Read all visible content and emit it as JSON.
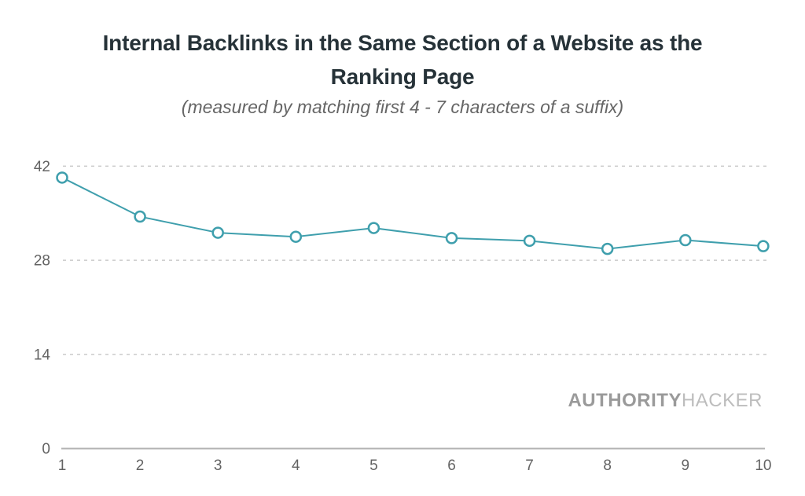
{
  "header": {
    "title_lines": [
      "Internal Backlinks in the Same Section of a Website as the",
      "Ranking Page"
    ],
    "subtitle": "(measured by matching first 4 - 7 characters of a suffix)"
  },
  "watermark": {
    "bold": "AUTHORITY",
    "light": "HACKER"
  },
  "chart_data": {
    "type": "line",
    "title": "Internal Backlinks in the Same Section of a Website as the Ranking Page",
    "subtitle": "(measured by matching first 4 - 7 characters of a suffix)",
    "x": [
      1,
      2,
      3,
      4,
      5,
      6,
      7,
      8,
      9,
      10
    ],
    "values": [
      40.3,
      34.5,
      32.1,
      31.5,
      32.8,
      31.3,
      30.9,
      29.7,
      31.0,
      30.1
    ],
    "xlabel": "",
    "ylabel": "",
    "ylim": [
      0,
      42
    ],
    "yticks": [
      0,
      14,
      28,
      42
    ],
    "grid": "horizontal-dashed",
    "legend": "none",
    "marker": "open-circle",
    "colors": {
      "line": "#3f9fad",
      "marker_fill": "#ffffff",
      "grid": "#c9c9c9",
      "axis": "#b3b3b3",
      "tick_label": "#636363",
      "title": "#263238",
      "subtitle": "#666666"
    }
  }
}
